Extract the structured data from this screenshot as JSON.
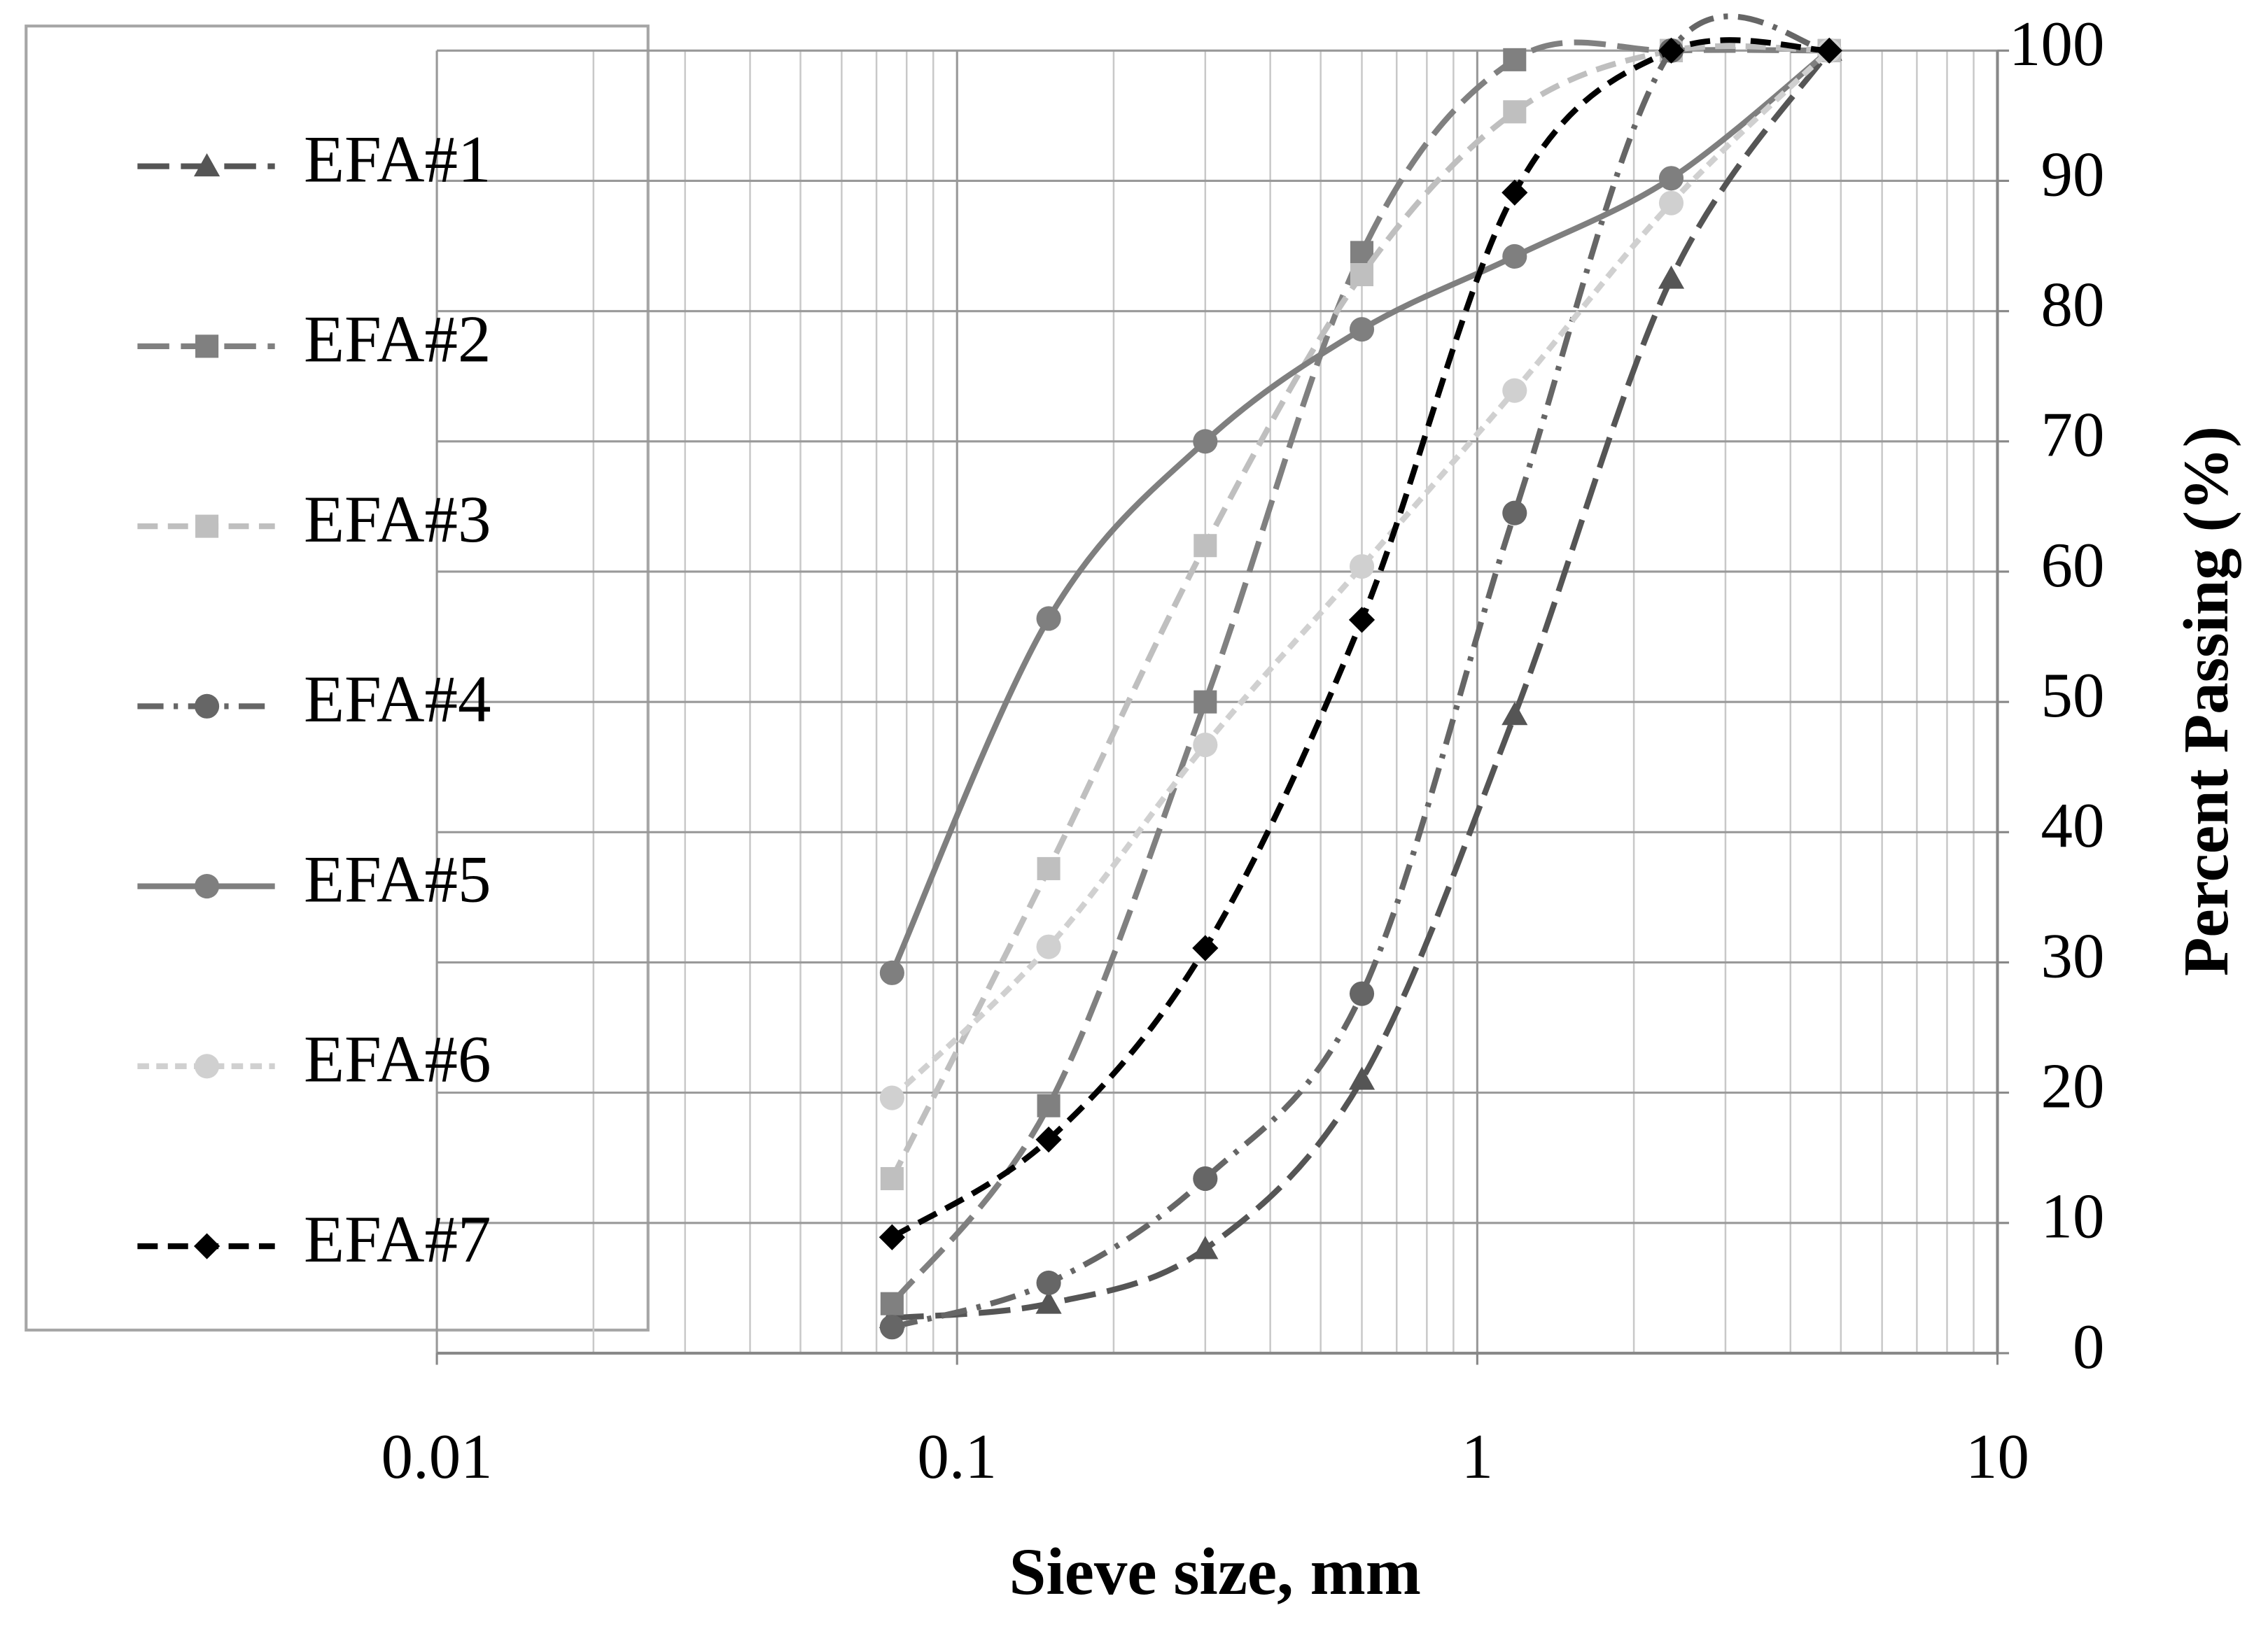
{
  "chart_data": {
    "type": "line",
    "x_label": "Sieve size, mm",
    "y_label": "Percent Passing (%)",
    "x": [
      0.075,
      0.15,
      0.3,
      0.6,
      1.18,
      2.36,
      4.75
    ],
    "xlim": [
      0.01,
      10
    ],
    "xticks": [
      0.01,
      0.1,
      1,
      10
    ],
    "x_log": true,
    "ylim": [
      0,
      100
    ],
    "yticks": [
      0,
      10,
      20,
      30,
      40,
      50,
      60,
      70,
      80,
      90,
      100
    ],
    "y_axis_side": "right",
    "grid": true,
    "legend": "left",
    "series": [
      {
        "name": "EFA#1",
        "color": "#555555",
        "marker": "triangle",
        "style": "long-dash",
        "values": [
          2.7,
          3.8,
          8,
          21,
          49,
          82.5,
          100
        ]
      },
      {
        "name": "EFA#2",
        "color": "#808080",
        "marker": "square",
        "style": "long-dash",
        "values": [
          3.8,
          19,
          50,
          84.5,
          99.3,
          100,
          100
        ]
      },
      {
        "name": "EFA#3",
        "color": "#bfbfbf",
        "marker": "square",
        "style": "dashed",
        "values": [
          13.4,
          37.2,
          62,
          82.8,
          95.3,
          100,
          100
        ]
      },
      {
        "name": "EFA#4",
        "color": "#666666",
        "marker": "circle",
        "style": "dash-dot",
        "values": [
          2,
          5.4,
          13.4,
          27.6,
          64.5,
          100,
          100
        ]
      },
      {
        "name": "EFA#5",
        "color": "#7f7f7f",
        "marker": "circle",
        "style": "solid",
        "values": [
          29.2,
          56.4,
          70,
          78.6,
          84.2,
          90.2,
          100
        ]
      },
      {
        "name": "EFA#6",
        "color": "#d0d0d0",
        "marker": "circle",
        "style": "short-dash",
        "values": [
          19.6,
          31.2,
          46.7,
          60.4,
          73.9,
          88.3,
          100
        ]
      },
      {
        "name": "EFA#7",
        "color": "#000000",
        "marker": "diamond",
        "style": "dashed",
        "values": [
          8.9,
          16.4,
          31.1,
          56.3,
          89.1,
          100,
          100
        ]
      }
    ]
  }
}
